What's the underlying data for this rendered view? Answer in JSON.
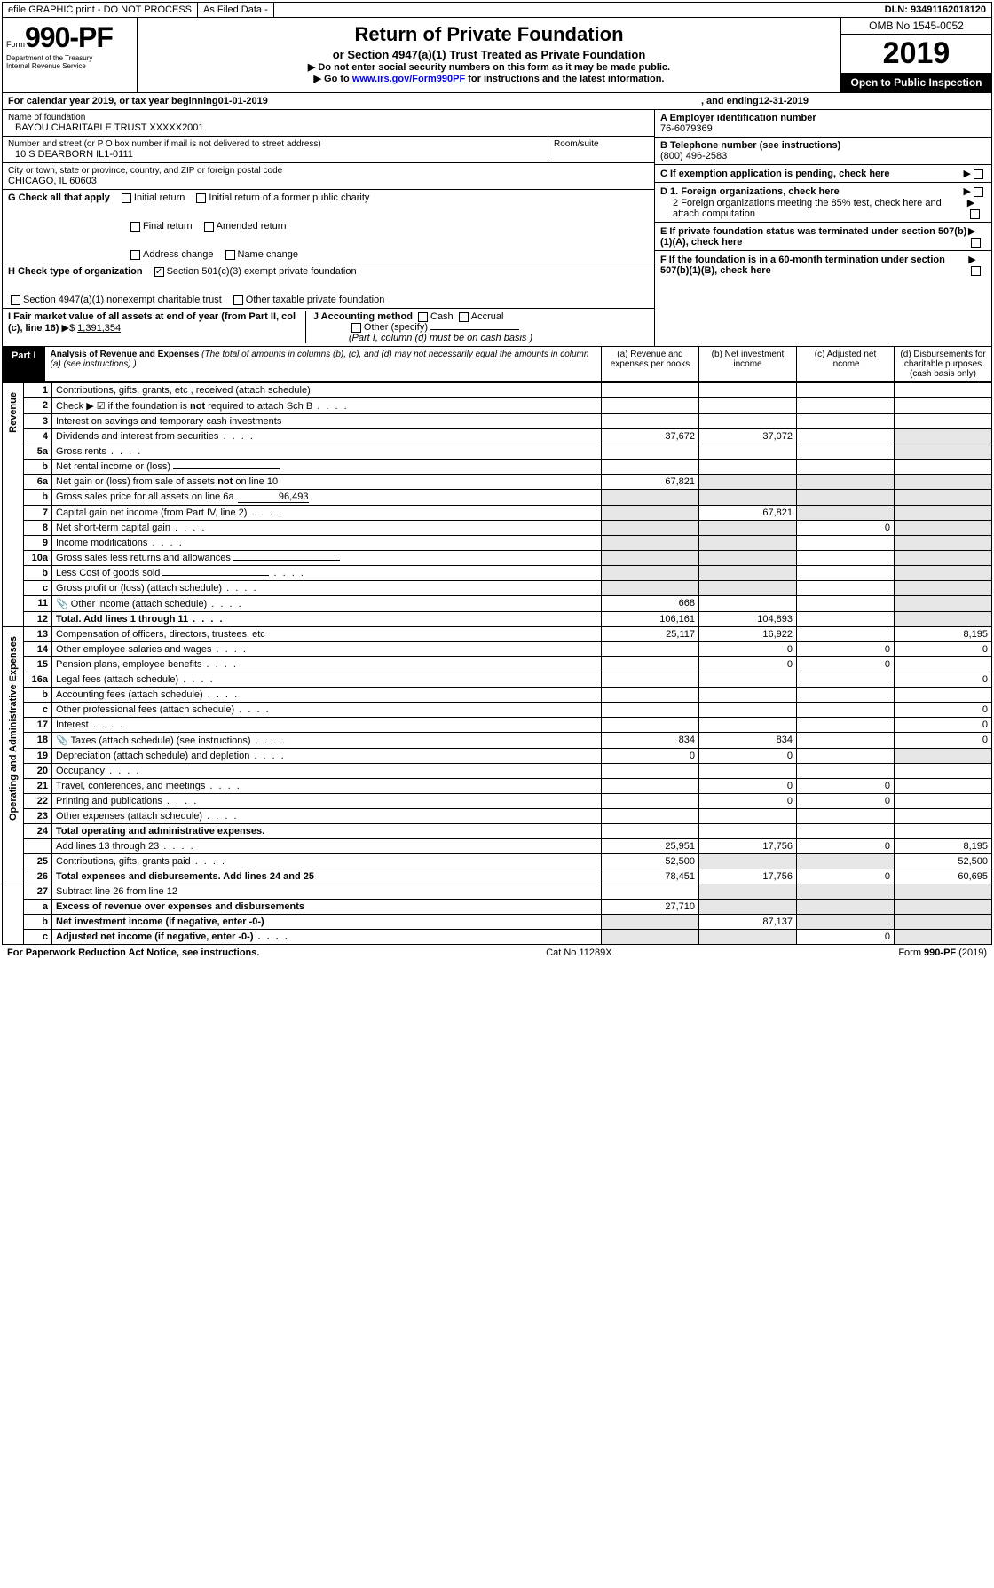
{
  "topbar": {
    "efile": "efile GRAPHIC print - DO NOT PROCESS",
    "asfiled": "As Filed Data -",
    "dln": "DLN: 93491162018120"
  },
  "formbox": {
    "form_prefix": "Form",
    "form_num": "990-PF",
    "dept": "Department of the Treasury",
    "irs": "Internal Revenue Service"
  },
  "title": {
    "main": "Return of Private Foundation",
    "sub": "or Section 4947(a)(1) Trust Treated as Private Foundation",
    "note1": "▶ Do not enter social security numbers on this form as it may be made public.",
    "note2_prefix": "▶ Go to ",
    "note2_link": "www.irs.gov/Form990PF",
    "note2_suffix": " for instructions and the latest information."
  },
  "rightbox": {
    "omb": "OMB No 1545-0052",
    "year": "2019",
    "open": "Open to Public Inspection"
  },
  "calyear": {
    "prefix": "For calendar year 2019, or tax year beginning ",
    "begin": "01-01-2019",
    "mid": ", and ending ",
    "end": "12-31-2019"
  },
  "info": {
    "name_label": "Name of foundation",
    "name_value": "BAYOU CHARITABLE TRUST XXXXX2001",
    "addr_label": "Number and street (or P O  box number if mail is not delivered to street address)",
    "addr_value": "10 S DEARBORN IL1-0111",
    "room_label": "Room/suite",
    "city_label": "City or town, state or province, country, and ZIP or foreign postal code",
    "city_value": "CHICAGO, IL  60603",
    "A_label": "A Employer identification number",
    "A_value": "76-6079369",
    "B_label": "B Telephone number (see instructions)",
    "B_value": "(800) 496-2583",
    "C_label": "C If exemption application is pending, check here",
    "D1": "D 1. Foreign organizations, check here",
    "D2": "2 Foreign organizations meeting the 85% test, check here and attach computation",
    "E": "E  If private foundation status was terminated under section 507(b)(1)(A), check here",
    "F": "F  If the foundation is in a 60-month termination under section 507(b)(1)(B), check here"
  },
  "G": {
    "label": "G Check all that apply",
    "initial": "Initial return",
    "initial_public": "Initial return of a former public charity",
    "final": "Final return",
    "amended": "Amended return",
    "addr_change": "Address change",
    "name_change": "Name change"
  },
  "H": {
    "label": "H Check type of organization",
    "sec501": "Section 501(c)(3) exempt private foundation",
    "sec4947": "Section 4947(a)(1) nonexempt charitable trust",
    "other": "Other taxable private foundation"
  },
  "I": {
    "label": "I Fair market value of all assets at end of year (from Part II, col  (c), line 16)",
    "arrow": "▶$",
    "value": "1,391,354"
  },
  "J": {
    "label": "J Accounting method",
    "cash": "Cash",
    "accrual": "Accrual",
    "other": "Other (specify)",
    "note": "(Part I, column (d) must be on cash basis )"
  },
  "part1": {
    "label": "Part I",
    "title": "Analysis of Revenue and Expenses",
    "title_note": " (The total of amounts in columns (b), (c), and (d) may not necessarily equal the amounts in column (a) (see instructions) )",
    "col_a": "(a)   Revenue and expenses per books",
    "col_b": "(b)  Net investment income",
    "col_c": "(c)  Adjusted net income",
    "col_d": "(d)  Disbursements for charitable purposes (cash basis only)"
  },
  "section_labels": {
    "revenue": "Revenue",
    "expenses": "Operating and Administrative Expenses"
  },
  "rows": [
    {
      "n": "1",
      "desc": "Contributions, gifts, grants, etc , received (attach schedule)",
      "a": "",
      "b": "",
      "c": "",
      "d": ""
    },
    {
      "n": "2",
      "desc": "Check ▶ ☑ if the foundation is not required to attach Sch B",
      "a": "",
      "b": "",
      "c": "",
      "d": "",
      "dots": true
    },
    {
      "n": "3",
      "desc": "Interest on savings and temporary cash investments",
      "a": "",
      "b": "",
      "c": "",
      "d": ""
    },
    {
      "n": "4",
      "desc": "Dividends and interest from securities",
      "a": "37,672",
      "b": "37,072",
      "c": "",
      "d": "",
      "dots": true,
      "dshade": true
    },
    {
      "n": "5a",
      "desc": "Gross rents",
      "a": "",
      "b": "",
      "c": "",
      "d": "",
      "dots": true,
      "dshade": true
    },
    {
      "n": "b",
      "desc": "Net rental income or (loss)",
      "a": "",
      "b": "",
      "c": "",
      "d": "",
      "hasline": true
    },
    {
      "n": "6a",
      "desc": "Net gain or (loss) from sale of assets not on line 10",
      "a": "67,821",
      "b": "",
      "c": "",
      "d": "",
      "bshade": true,
      "cshade": true,
      "dshade": true
    },
    {
      "n": "b",
      "desc": "Gross sales price for all assets on line 6a",
      "a": "",
      "b": "",
      "c": "",
      "d": "",
      "inline_val": "96,493",
      "bshade": true,
      "cshade": true,
      "dshade": true,
      "ashade": true
    },
    {
      "n": "7",
      "desc": "Capital gain net income (from Part IV, line 2)",
      "a": "",
      "b": "67,821",
      "c": "",
      "d": "",
      "dots": true,
      "ashade": true,
      "cshade": true,
      "dshade": true
    },
    {
      "n": "8",
      "desc": "Net short-term capital gain",
      "a": "",
      "b": "",
      "c": "0",
      "d": "",
      "dots": true,
      "ashade": true,
      "bshade": true,
      "dshade": true
    },
    {
      "n": "9",
      "desc": "Income modifications",
      "a": "",
      "b": "",
      "c": "",
      "d": "",
      "dots": true,
      "ashade": true,
      "bshade": true,
      "dshade": true
    },
    {
      "n": "10a",
      "desc": "Gross sales less returns and allowances",
      "a": "",
      "b": "",
      "c": "",
      "d": "",
      "hasline": true,
      "ashade": true,
      "bshade": true,
      "dshade": true
    },
    {
      "n": "b",
      "desc": "Less  Cost of goods sold",
      "a": "",
      "b": "",
      "c": "",
      "d": "",
      "dots": true,
      "hasline": true,
      "ashade": true,
      "bshade": true,
      "dshade": true
    },
    {
      "n": "c",
      "desc": "Gross profit or (loss) (attach schedule)",
      "a": "",
      "b": "",
      "c": "",
      "d": "",
      "dots": true,
      "ashade": true,
      "bshade": true,
      "dshade": true
    },
    {
      "n": "11",
      "desc": "Other income (attach schedule)",
      "a": "668",
      "b": "",
      "c": "",
      "d": "",
      "dots": true,
      "icon": true,
      "dshade": true
    },
    {
      "n": "12",
      "desc": "Total. Add lines 1 through 11",
      "a": "106,161",
      "b": "104,893",
      "c": "",
      "d": "",
      "bold": true,
      "dots": true,
      "dshade": true
    }
  ],
  "exp_rows": [
    {
      "n": "13",
      "desc": "Compensation of officers, directors, trustees, etc",
      "a": "25,117",
      "b": "16,922",
      "c": "",
      "d": "8,195"
    },
    {
      "n": "14",
      "desc": "Other employee salaries and wages",
      "a": "",
      "b": "0",
      "c": "0",
      "d": "0",
      "dots": true
    },
    {
      "n": "15",
      "desc": "Pension plans, employee benefits",
      "a": "",
      "b": "0",
      "c": "0",
      "d": "",
      "dots": true
    },
    {
      "n": "16a",
      "desc": "Legal fees (attach schedule)",
      "a": "",
      "b": "",
      "c": "",
      "d": "0",
      "dots": true
    },
    {
      "n": "b",
      "desc": "Accounting fees (attach schedule)",
      "a": "",
      "b": "",
      "c": "",
      "d": "",
      "dots": true
    },
    {
      "n": "c",
      "desc": "Other professional fees (attach schedule)",
      "a": "",
      "b": "",
      "c": "",
      "d": "0",
      "dots": true
    },
    {
      "n": "17",
      "desc": "Interest",
      "a": "",
      "b": "",
      "c": "",
      "d": "0",
      "dots": true
    },
    {
      "n": "18",
      "desc": "Taxes (attach schedule) (see instructions)",
      "a": "834",
      "b": "834",
      "c": "",
      "d": "0",
      "dots": true,
      "icon": true
    },
    {
      "n": "19",
      "desc": "Depreciation (attach schedule) and depletion",
      "a": "0",
      "b": "0",
      "c": "",
      "d": "",
      "dots": true,
      "dshade": true
    },
    {
      "n": "20",
      "desc": "Occupancy",
      "a": "",
      "b": "",
      "c": "",
      "d": "",
      "dots": true
    },
    {
      "n": "21",
      "desc": "Travel, conferences, and meetings",
      "a": "",
      "b": "0",
      "c": "0",
      "d": "",
      "dots": true
    },
    {
      "n": "22",
      "desc": "Printing and publications",
      "a": "",
      "b": "0",
      "c": "0",
      "d": "",
      "dots": true
    },
    {
      "n": "23",
      "desc": "Other expenses (attach schedule)",
      "a": "",
      "b": "",
      "c": "",
      "d": "",
      "dots": true
    },
    {
      "n": "24",
      "desc": "Total operating and administrative expenses.",
      "bold": true
    },
    {
      "n": "",
      "desc": "Add lines 13 through 23",
      "a": "25,951",
      "b": "17,756",
      "c": "0",
      "d": "8,195",
      "dots": true
    },
    {
      "n": "25",
      "desc": "Contributions, gifts, grants paid",
      "a": "52,500",
      "b": "",
      "c": "",
      "d": "52,500",
      "dots": true,
      "bshade": true,
      "cshade": true
    },
    {
      "n": "26",
      "desc": "Total expenses and disbursements. Add lines 24 and 25",
      "a": "78,451",
      "b": "17,756",
      "c": "0",
      "d": "60,695",
      "bold": true
    }
  ],
  "bottom_rows": [
    {
      "n": "27",
      "desc": "Subtract line 26 from line 12",
      "a": "",
      "b": "",
      "c": "",
      "d": "",
      "bshade": true,
      "cshade": true,
      "dshade": true
    },
    {
      "n": "a",
      "desc": "Excess of revenue over expenses and disbursements",
      "a": "27,710",
      "b": "",
      "c": "",
      "d": "",
      "bold": true,
      "bshade": true,
      "cshade": true,
      "dshade": true
    },
    {
      "n": "b",
      "desc": "Net investment income (if negative, enter -0-)",
      "a": "",
      "b": "87,137",
      "c": "",
      "d": "",
      "bold": true,
      "ashade": true,
      "cshade": true,
      "dshade": true
    },
    {
      "n": "c",
      "desc": "Adjusted net income (if negative, enter -0-)",
      "a": "",
      "b": "",
      "c": "0",
      "d": "",
      "bold": true,
      "dots": true,
      "ashade": true,
      "bshade": true,
      "dshade": true
    }
  ],
  "footer": {
    "left": "For Paperwork Reduction Act Notice, see instructions.",
    "mid": "Cat  No  11289X",
    "right": "Form 990-PF (2019)"
  }
}
